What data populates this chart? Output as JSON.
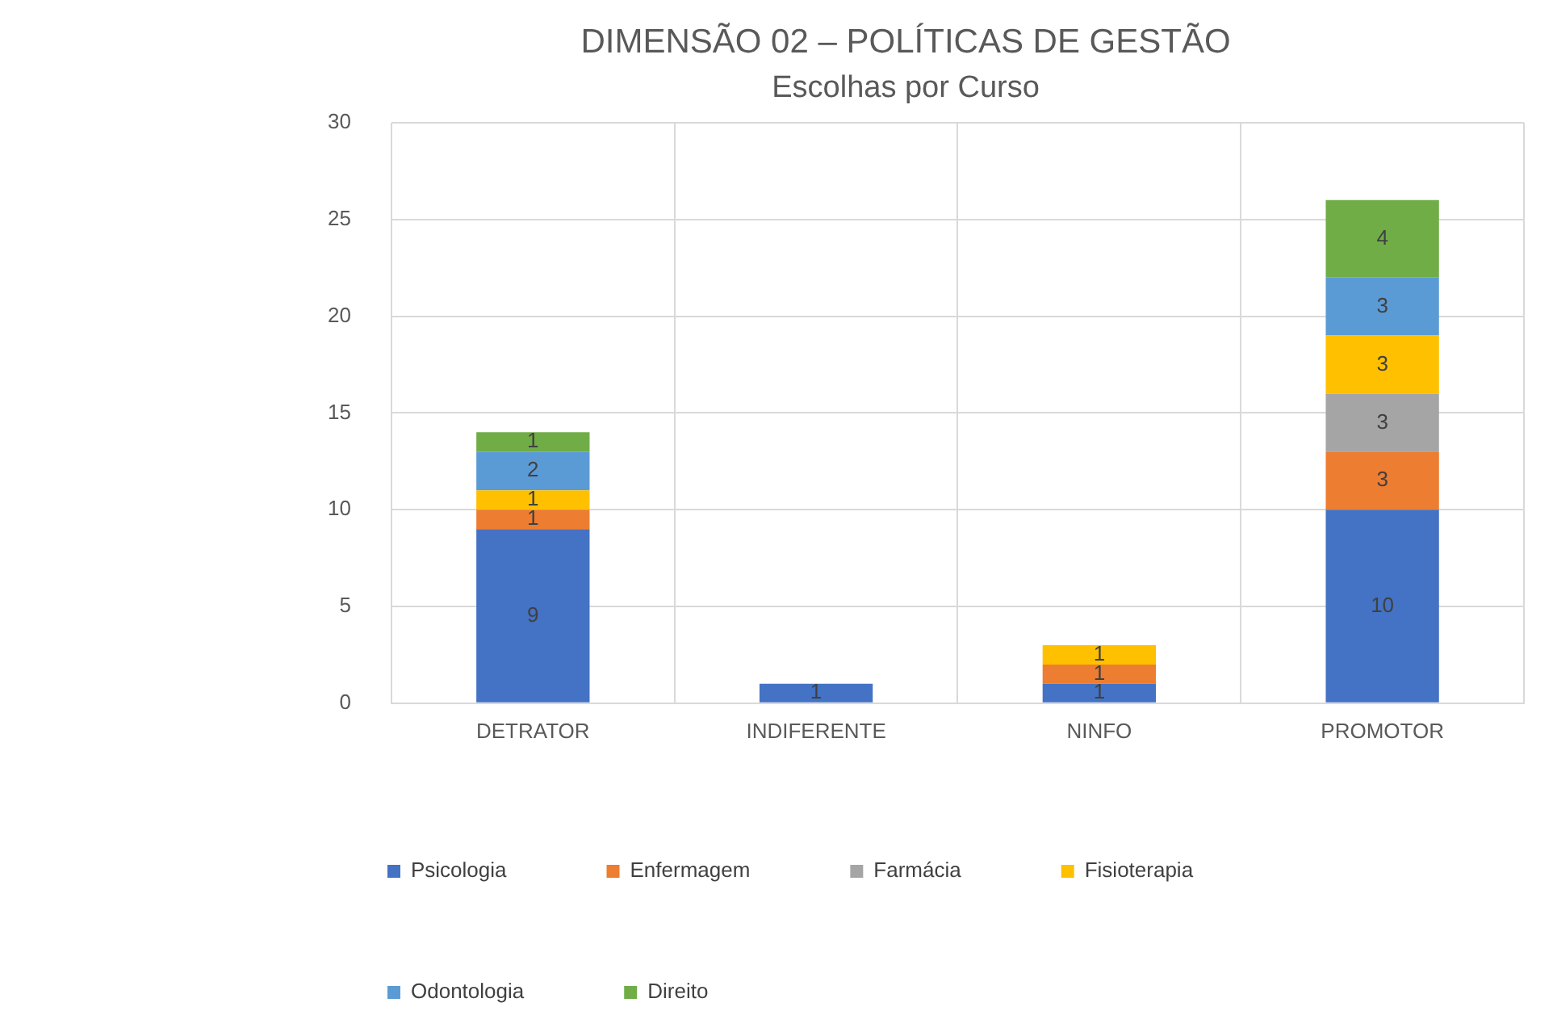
{
  "chart_data": {
    "type": "bar",
    "title": "DIMENSÃO 02 – POLÍTICAS DE GESTÃO",
    "subtitle": "Escolhas por Curso",
    "categories": [
      "DETRATOR",
      "INDIFERENTE",
      "NINFO",
      "PROMOTOR"
    ],
    "stacked": true,
    "ylim": [
      0,
      30
    ],
    "yticks": [
      0,
      5,
      10,
      15,
      20,
      25,
      30
    ],
    "grid": true,
    "legend": "bottom",
    "data_labels": true,
    "series": [
      {
        "name": "Psicologia",
        "color": "#4472c4",
        "values": [
          9,
          1,
          1,
          10
        ]
      },
      {
        "name": "Enfermagem",
        "color": "#ed7d31",
        "values": [
          1,
          null,
          1,
          3
        ]
      },
      {
        "name": "Farmácia",
        "color": "#a5a5a5",
        "values": [
          null,
          null,
          null,
          3
        ]
      },
      {
        "name": "Fisioterapia",
        "color": "#ffc000",
        "values": [
          1,
          null,
          1,
          3
        ]
      },
      {
        "name": "Odontologia",
        "color": "#5b9bd5",
        "values": [
          2,
          null,
          null,
          3
        ]
      },
      {
        "name": "Direito",
        "color": "#70ad47",
        "values": [
          1,
          null,
          null,
          4
        ]
      }
    ]
  }
}
